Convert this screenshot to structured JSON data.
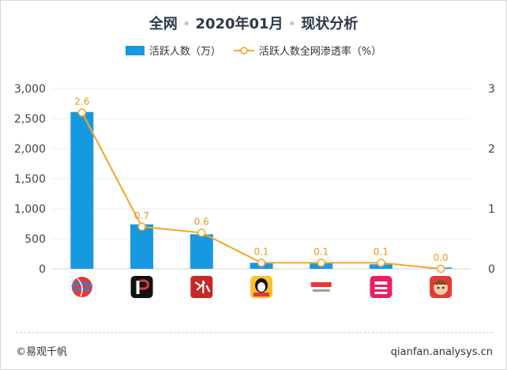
{
  "title": {
    "part1": "全网",
    "part2": "2020年01月",
    "part3": "现状分析"
  },
  "legend": {
    "bar_label": "活跃人数（万）",
    "line_label": "活跃人数全网渗透率（%）"
  },
  "footer": {
    "left": "©易观千帆",
    "right": "qianfan.analysys.cn"
  },
  "colors": {
    "bar": "#1799e0",
    "line": "#f5a623"
  },
  "chart_data": {
    "type": "bar",
    "categories": [
      "app-1",
      "app-2",
      "app-3",
      "app-4",
      "app-5",
      "app-6",
      "app-7"
    ],
    "category_icons": [
      "globe-ball-icon",
      "p-logo-icon",
      "red-calligraphy-icon",
      "penguin-icon",
      "zhibo-text-icon",
      "leisu-icon",
      "monkey-icon"
    ],
    "series": [
      {
        "type": "bar",
        "axis": "left",
        "values": [
          2610,
          740,
          575,
          100,
          95,
          75,
          20
        ]
      },
      {
        "type": "line",
        "axis": "right",
        "values": [
          2.6,
          0.7,
          0.6,
          0.1,
          0.1,
          0.1,
          0.0
        ],
        "labels": [
          "2.6",
          "0.7",
          "0.6",
          "0.1",
          "0.1",
          "0.1",
          "0.0"
        ]
      }
    ],
    "y_left": {
      "ylim": [
        0,
        3000
      ],
      "ticks": [
        0,
        500,
        1000,
        1500,
        2000,
        2500,
        3000
      ],
      "tick_labels": [
        "0",
        "500",
        "1,000",
        "1,500",
        "2,000",
        "2,500",
        "3,000"
      ]
    },
    "y_right": {
      "ylim": [
        0,
        3
      ],
      "ticks": [
        0,
        1,
        2,
        3
      ],
      "tick_labels": [
        "0",
        "1",
        "2",
        "3"
      ]
    },
    "grid": true,
    "legend_position": "top-center"
  }
}
